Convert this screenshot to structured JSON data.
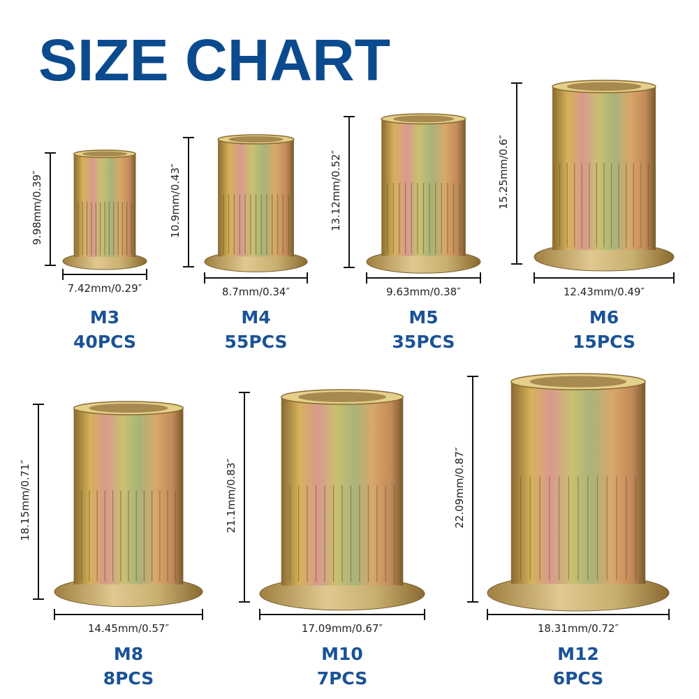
{
  "header": {
    "title": "SIZE CHART"
  },
  "items": [
    {
      "size": "M3",
      "quantity": "40PCS",
      "height": "9.98mm/0.39″",
      "width": "7.42mm/0.29″"
    },
    {
      "size": "M4",
      "quantity": "55PCS",
      "height": "10.9mm/0.43″",
      "width": "8.7mm/0.34″"
    },
    {
      "size": "M5",
      "quantity": "35PCS",
      "height": "13.12mm/0.52″",
      "width": "9.63mm/0.38″"
    },
    {
      "size": "M6",
      "quantity": "15PCS",
      "height": "15.25mm/0.6″",
      "width": "12.43mm/0.49″"
    },
    {
      "size": "M8",
      "quantity": "8PCS",
      "height": "18.15mm/0.71″",
      "width": "14.45mm/0.57″"
    },
    {
      "size": "M10",
      "quantity": "7PCS",
      "height": "21.1mm/0.83″",
      "width": "17.09mm/0.67″"
    },
    {
      "size": "M12",
      "quantity": "6PCS",
      "height": "22.09mm/0.87″",
      "width": "18.31mm/0.72″"
    }
  ]
}
